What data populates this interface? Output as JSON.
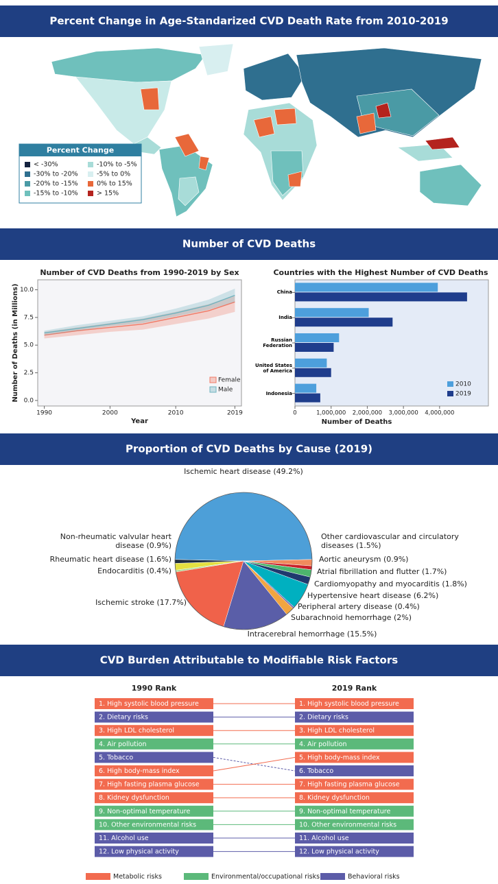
{
  "headers": [
    "Percent Change in Age-Standarized CVD Death Rate from 2010-2019",
    "Number of CVD Deaths",
    "Proportion of CVD Deaths by Cause (2019)",
    "CVD Burden Attributable to Modifiable Risk Factors"
  ],
  "map": {
    "legend_title": "Percent Change",
    "legend": [
      {
        "label": "< -30%",
        "color": "#14233f"
      },
      {
        "label": "-30% to -20%",
        "color": "#2f6f8f"
      },
      {
        "label": "-20% to -15%",
        "color": "#4a9aa5"
      },
      {
        "label": "-15% to -10%",
        "color": "#6fc0bc"
      },
      {
        "label": "-10% to -5%",
        "color": "#a8dcd8"
      },
      {
        "label": "-5% to 0%",
        "color": "#d8eff0"
      },
      {
        "label": "0% to 15%",
        "color": "#e8683a"
      },
      {
        "label": "> 15%",
        "color": "#b4231e"
      }
    ]
  },
  "chart_data": [
    {
      "type": "line",
      "title": "Number of CVD Deaths from 1990-2019 by Sex",
      "x_label": "Year",
      "y_label": "Number of Deaths (in Millions)",
      "x": [
        1990,
        1995,
        2000,
        2005,
        2010,
        2015,
        2019
      ],
      "series": [
        {
          "name": "Female",
          "color": "#f07a66",
          "values": [
            5.9,
            6.3,
            6.6,
            6.9,
            7.5,
            8.1,
            8.9
          ],
          "lower": [
            5.6,
            5.9,
            6.2,
            6.4,
            6.9,
            7.4,
            8.0
          ],
          "upper": [
            6.2,
            6.6,
            7.0,
            7.4,
            8.0,
            8.7,
            9.5
          ]
        },
        {
          "name": "Male",
          "color": "#6fb3bf",
          "values": [
            6.1,
            6.5,
            6.9,
            7.3,
            7.9,
            8.6,
            9.5
          ],
          "lower": [
            5.9,
            6.3,
            6.7,
            7.0,
            7.6,
            8.2,
            8.9
          ],
          "upper": [
            6.3,
            6.8,
            7.2,
            7.6,
            8.3,
            9.1,
            10.1
          ]
        }
      ],
      "xlim": [
        1989,
        2020
      ],
      "xticks": [
        1990,
        2000,
        2010,
        2019
      ],
      "ylim": [
        -0.5,
        10.9
      ],
      "yticks": [
        {
          "value": 0,
          "label": "0.0"
        },
        2.5,
        {
          "value": 5,
          "label": "5.0"
        },
        7.5,
        {
          "value": 10,
          "label": "10.0"
        }
      ],
      "legend": "bottom-right"
    },
    {
      "type": "bar",
      "orientation": "horizontal",
      "title": "Countries with the Highest Number of CVD Deaths",
      "x_label": "Number of Deaths",
      "categories": [
        "China",
        "India",
        "Russian Federation",
        "United States of America",
        "Indonesia"
      ],
      "series": [
        {
          "name": "2010",
          "color": "#4d9fdc",
          "values": [
            3950000,
            2040000,
            1220000,
            880000,
            590000
          ]
        },
        {
          "name": "2019",
          "color": "#1f3d8c",
          "values": [
            4760000,
            2700000,
            1070000,
            1000000,
            700000
          ]
        }
      ],
      "xlim": [
        0,
        5350000
      ],
      "xticks": [
        0,
        {
          "value": 1000000,
          "label": "1,000,000"
        },
        {
          "value": 2000000,
          "label": "2,000,000"
        },
        {
          "value": 3000000,
          "label": "3,000,000"
        },
        {
          "value": 4000000,
          "label": "4,000,000"
        }
      ],
      "legend": "bottom-right"
    },
    {
      "type": "pie",
      "categories": [
        "Ischemic heart disease",
        "Other cardiovascular and circulatory diseases",
        "Aortic aneurysm",
        "Atrial fibrillation and flutter",
        "Cardiomyopathy and myocarditis",
        "Hypertensive heart disease",
        "Peripheral artery disease",
        "Subarachnoid hemorrhage",
        "Intracerebral hemorrhage",
        "Ischemic stroke",
        "Endocarditis",
        "Rheumatic heart disease",
        "Non-rheumatic valvular heart disease"
      ],
      "values": [
        49.2,
        1.5,
        0.9,
        1.7,
        1.8,
        6.2,
        0.4,
        2,
        15.5,
        17.7,
        0.4,
        1.6,
        0.9
      ],
      "value_labels": [
        "(49.2%)",
        "(1.5%)",
        "(0.9%)",
        "(1.7%)",
        "(1.8%)",
        "(6.2%)",
        "(0.4%)",
        "(2%)",
        "(15.5%)",
        "(17.7%)",
        "(0.4%)",
        "(1.6%)",
        "(0.9%)"
      ],
      "colors": [
        "#4d9fd8",
        "#f08a5d",
        "#c8202a",
        "#4db56d",
        "#1f3a6e",
        "#00b0c0",
        "#7a6fb0",
        "#f2a540",
        "#5a5ea8",
        "#f0624a",
        "#a8d88a",
        "#e4e040",
        "#1e2d40"
      ]
    }
  ],
  "risk_factors": {
    "left_heading": "1990 Rank",
    "right_heading": "2019 Rank",
    "categories": [
      {
        "name": "Metabolic risks",
        "color": "#f26b4f"
      },
      {
        "name": "Environmental/occupational risks",
        "color": "#5cb97a"
      },
      {
        "name": "Behavioral risks",
        "color": "#5c5ca8"
      }
    ],
    "rank_1990": [
      {
        "label": "1. High systolic blood pressure",
        "category": 0
      },
      {
        "label": "2. Dietary risks",
        "category": 2
      },
      {
        "label": "3. High LDL cholesterol",
        "category": 0
      },
      {
        "label": "4. Air pollution",
        "category": 1
      },
      {
        "label": "5. Tobacco",
        "category": 2
      },
      {
        "label": "6. High body-mass index",
        "category": 0
      },
      {
        "label": "7. High fasting plasma glucose",
        "category": 0
      },
      {
        "label": "8. Kidney dysfunction",
        "category": 0
      },
      {
        "label": "9. Non-optimal temperature",
        "category": 1
      },
      {
        "label": "10. Other environmental risks",
        "category": 1
      },
      {
        "label": "11. Alcohol use",
        "category": 2
      },
      {
        "label": "12. Low physical activity",
        "category": 2
      }
    ],
    "rank_2019": [
      {
        "label": "1. High systolic blood pressure",
        "category": 0
      },
      {
        "label": "2. Dietary risks",
        "category": 2
      },
      {
        "label": "3. High LDL cholesterol",
        "category": 0
      },
      {
        "label": "4. Air pollution",
        "category": 1
      },
      {
        "label": "5. High body-mass index",
        "category": 0
      },
      {
        "label": "6. Tobacco",
        "category": 2
      },
      {
        "label": "7. High fasting plasma glucose",
        "category": 0
      },
      {
        "label": "8. Kidney dysfunction",
        "category": 0
      },
      {
        "label": "9. Non-optimal temperature",
        "category": 1
      },
      {
        "label": "10. Other environmental risks",
        "category": 1
      },
      {
        "label": "11. Alcohol use",
        "category": 2
      },
      {
        "label": "12. Low physical activity",
        "category": 2
      }
    ]
  }
}
